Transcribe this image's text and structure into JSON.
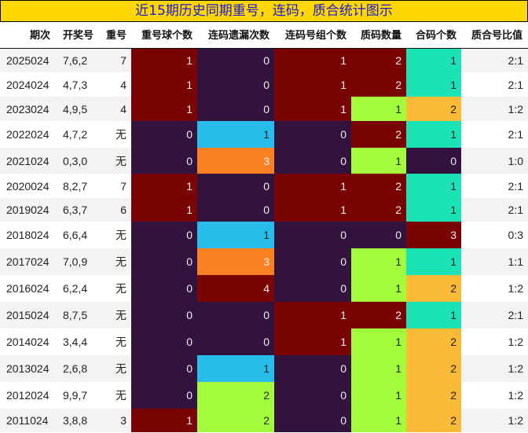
{
  "title": "近15期历史同期重号，连码，质合统计图示",
  "headers": [
    "期次",
    "开奖号",
    "重号",
    "重号球个数",
    "连码遗漏次数",
    "连码号组个数",
    "质码数量",
    "合码个数",
    "质合号比值"
  ],
  "colors": {
    "title_bg": "#ffd700",
    "title_text": "#1a1adc",
    "row_even": "#f3f3f3",
    "row_odd": "#ffffff",
    "dark_purple": "#32133d",
    "dark_red": "#7a0403",
    "cyan": "#28bceb",
    "orange": "#fb8022",
    "lime": "#a2fc3c",
    "teal": "#1ae4b6",
    "amber": "#f9ba38"
  },
  "rows": [
    {
      "period": "2025024",
      "draw": "7,6,2",
      "repeat": "7",
      "repeat_count": "1",
      "consec_miss": "0",
      "consec_groups": "1",
      "prime_count": "2",
      "composite_count": "1",
      "ratio": "2:1"
    },
    {
      "period": "2024024",
      "draw": "4,7,3",
      "repeat": "4",
      "repeat_count": "1",
      "consec_miss": "0",
      "consec_groups": "1",
      "prime_count": "2",
      "composite_count": "1",
      "ratio": "2:1"
    },
    {
      "period": "2023024",
      "draw": "4,9,5",
      "repeat": "4",
      "repeat_count": "1",
      "consec_miss": "0",
      "consec_groups": "1",
      "prime_count": "1",
      "composite_count": "2",
      "ratio": "1:2"
    },
    {
      "period": "2022024",
      "draw": "4,7,2",
      "repeat": "无",
      "repeat_count": "0",
      "consec_miss": "1",
      "consec_groups": "0",
      "prime_count": "2",
      "composite_count": "1",
      "ratio": "2:1"
    },
    {
      "period": "2021024",
      "draw": "0,3,0",
      "repeat": "无",
      "repeat_count": "0",
      "consec_miss": "3",
      "consec_groups": "0",
      "prime_count": "1",
      "composite_count": "0",
      "ratio": "1:0"
    },
    {
      "period": "2020024",
      "draw": "8,2,7",
      "repeat": "7",
      "repeat_count": "1",
      "consec_miss": "0",
      "consec_groups": "1",
      "prime_count": "2",
      "composite_count": "1",
      "ratio": "2:1"
    },
    {
      "period": "2019024",
      "draw": "6,3,7",
      "repeat": "6",
      "repeat_count": "1",
      "consec_miss": "0",
      "consec_groups": "1",
      "prime_count": "2",
      "composite_count": "1",
      "ratio": "2:1"
    },
    {
      "period": "2018024",
      "draw": "6,6,4",
      "repeat": "无",
      "repeat_count": "0",
      "consec_miss": "1",
      "consec_groups": "0",
      "prime_count": "0",
      "composite_count": "3",
      "ratio": "0:3"
    },
    {
      "period": "2017024",
      "draw": "7,0,9",
      "repeat": "无",
      "repeat_count": "0",
      "consec_miss": "3",
      "consec_groups": "0",
      "prime_count": "1",
      "composite_count": "1",
      "ratio": "1:1"
    },
    {
      "period": "2016024",
      "draw": "6,2,4",
      "repeat": "无",
      "repeat_count": "0",
      "consec_miss": "4",
      "consec_groups": "0",
      "prime_count": "1",
      "composite_count": "2",
      "ratio": "1:2"
    },
    {
      "period": "2015024",
      "draw": "8,7,5",
      "repeat": "无",
      "repeat_count": "0",
      "consec_miss": "0",
      "consec_groups": "1",
      "prime_count": "2",
      "composite_count": "1",
      "ratio": "2:1"
    },
    {
      "period": "2014024",
      "draw": "3,4,4",
      "repeat": "无",
      "repeat_count": "0",
      "consec_miss": "0",
      "consec_groups": "1",
      "prime_count": "1",
      "composite_count": "2",
      "ratio": "1:2"
    },
    {
      "period": "2013024",
      "draw": "2,6,8",
      "repeat": "无",
      "repeat_count": "0",
      "consec_miss": "1",
      "consec_groups": "0",
      "prime_count": "1",
      "composite_count": "2",
      "ratio": "1:2"
    },
    {
      "period": "2012024",
      "draw": "9,9,7",
      "repeat": "无",
      "repeat_count": "0",
      "consec_miss": "2",
      "consec_groups": "0",
      "prime_count": "1",
      "composite_count": "2",
      "ratio": "1:2"
    },
    {
      "period": "2011024",
      "draw": "3,8,8",
      "repeat": "3",
      "repeat_count": "1",
      "consec_miss": "2",
      "consec_groups": "0",
      "prime_count": "1",
      "composite_count": "2",
      "ratio": "1:2"
    }
  ],
  "chart_data": {
    "type": "heatmap",
    "title": "近15期历史同期重号，连码，质合统计图示",
    "columns": [
      "期次",
      "开奖号",
      "重号",
      "重号球个数",
      "连码遗漏次数",
      "连码号组个数",
      "质码数量",
      "合码个数",
      "质合号比值"
    ],
    "categories": [
      "2025024",
      "2024024",
      "2023024",
      "2022024",
      "2021024",
      "2020024",
      "2019024",
      "2018024",
      "2017024",
      "2016024",
      "2015024",
      "2014024",
      "2013024",
      "2012024",
      "2011024"
    ],
    "series": [
      {
        "name": "重号球个数",
        "values": [
          1,
          1,
          1,
          0,
          0,
          1,
          1,
          0,
          0,
          0,
          0,
          0,
          0,
          0,
          1
        ]
      },
      {
        "name": "连码遗漏次数",
        "values": [
          0,
          0,
          0,
          1,
          3,
          0,
          0,
          1,
          3,
          4,
          0,
          0,
          1,
          2,
          2
        ]
      },
      {
        "name": "连码号组个数",
        "values": [
          1,
          1,
          1,
          0,
          0,
          1,
          1,
          0,
          0,
          0,
          1,
          1,
          0,
          0,
          0
        ]
      },
      {
        "name": "质码数量",
        "values": [
          2,
          2,
          1,
          2,
          1,
          2,
          2,
          0,
          1,
          1,
          2,
          1,
          1,
          1,
          1
        ]
      },
      {
        "name": "合码个数",
        "values": [
          1,
          1,
          2,
          1,
          0,
          1,
          1,
          3,
          1,
          2,
          1,
          2,
          2,
          2,
          2
        ]
      }
    ],
    "draws": [
      "7,6,2",
      "4,7,3",
      "4,9,5",
      "4,7,2",
      "0,3,0",
      "8,2,7",
      "6,3,7",
      "6,6,4",
      "7,0,9",
      "6,2,4",
      "8,7,5",
      "3,4,4",
      "2,6,8",
      "9,9,7",
      "3,8,8"
    ],
    "repeats": [
      "7",
      "4",
      "4",
      "无",
      "无",
      "7",
      "6",
      "无",
      "无",
      "无",
      "无",
      "无",
      "无",
      "无",
      "3"
    ],
    "ratios": [
      "2:1",
      "2:1",
      "1:2",
      "2:1",
      "1:0",
      "2:1",
      "2:1",
      "0:3",
      "1:1",
      "1:2",
      "2:1",
      "1:2",
      "1:2",
      "1:2",
      "1:2"
    ]
  }
}
